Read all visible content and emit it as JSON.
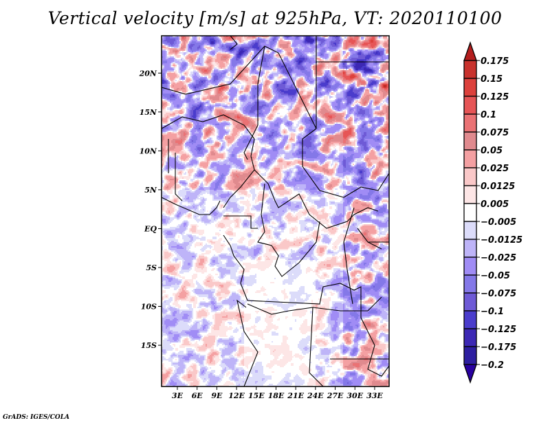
{
  "title": "Vertical velocity [m/s] at 925hPa, VT: 2020110100",
  "credit": "GrADS: IGES/COLA",
  "chart_data": {
    "type": "heatmap",
    "title": "Vertical velocity [m/s] at 925hPa, VT: 2020110100",
    "variable": "Vertical velocity",
    "units": "m/s",
    "level": "925hPa",
    "valid_time": "2020110100",
    "xlabel": "",
    "ylabel": "",
    "xlim_deg": [
      0.6,
      35.2
    ],
    "ylim_deg": [
      -20.3,
      24.8
    ],
    "x_ticks": [
      {
        "value": 3,
        "label": "3E"
      },
      {
        "value": 6,
        "label": "6E"
      },
      {
        "value": 9,
        "label": "9E"
      },
      {
        "value": 12,
        "label": "12E"
      },
      {
        "value": 15,
        "label": "15E"
      },
      {
        "value": 18,
        "label": "18E"
      },
      {
        "value": 21,
        "label": "21E"
      },
      {
        "value": 24,
        "label": "24E"
      },
      {
        "value": 27,
        "label": "27E"
      },
      {
        "value": 30,
        "label": "30E"
      },
      {
        "value": 33,
        "label": "33E"
      }
    ],
    "y_ticks": [
      {
        "value": 20,
        "label": "20N"
      },
      {
        "value": 15,
        "label": "15N"
      },
      {
        "value": 10,
        "label": "10N"
      },
      {
        "value": 5,
        "label": "5N"
      },
      {
        "value": 0,
        "label": "EQ"
      },
      {
        "value": -5,
        "label": "5S"
      },
      {
        "value": -10,
        "label": "10S"
      },
      {
        "value": -15,
        "label": "15S"
      }
    ],
    "grid": false,
    "colorbar": {
      "placement": "right",
      "orientation": "vertical",
      "extend": "both",
      "levels": [
        0.175,
        0.15,
        0.125,
        0.1,
        0.075,
        0.05,
        0.025,
        0.0125,
        0.005,
        -0.005,
        -0.0125,
        -0.025,
        -0.05,
        -0.075,
        -0.1,
        -0.125,
        -0.175,
        -0.2
      ],
      "labels": [
        "0.175",
        "0.15",
        "0.125",
        "0.1",
        "0.075",
        "0.05",
        "0.025",
        "0.0125",
        "0.005",
        "−0.005",
        "−0.0125",
        "−0.025",
        "−0.05",
        "−0.075",
        "−0.1",
        "−0.125",
        "−0.175",
        "−0.2"
      ],
      "colors": [
        "#b41e1e",
        "#c8322d",
        "#dc413c",
        "#e65556",
        "#ea7274",
        "#e08a8e",
        "#f4a0a2",
        "#fac8c8",
        "#fde6e6",
        "#ffffff",
        "#dcdcfa",
        "#beb4f8",
        "#a08cf5",
        "#8478e8",
        "#6e5ad6",
        "#4a3ccc",
        "#3c28b4",
        "#2d1ea0",
        "#2800a0"
      ]
    },
    "field_description": "Mottled fine-scale positive (red) and negative (blue) vertical velocity across central Africa; strongest signals over the Sahel/Sahara north of 5N and along the East African rift; weak values over Angola/Congo basin."
  }
}
